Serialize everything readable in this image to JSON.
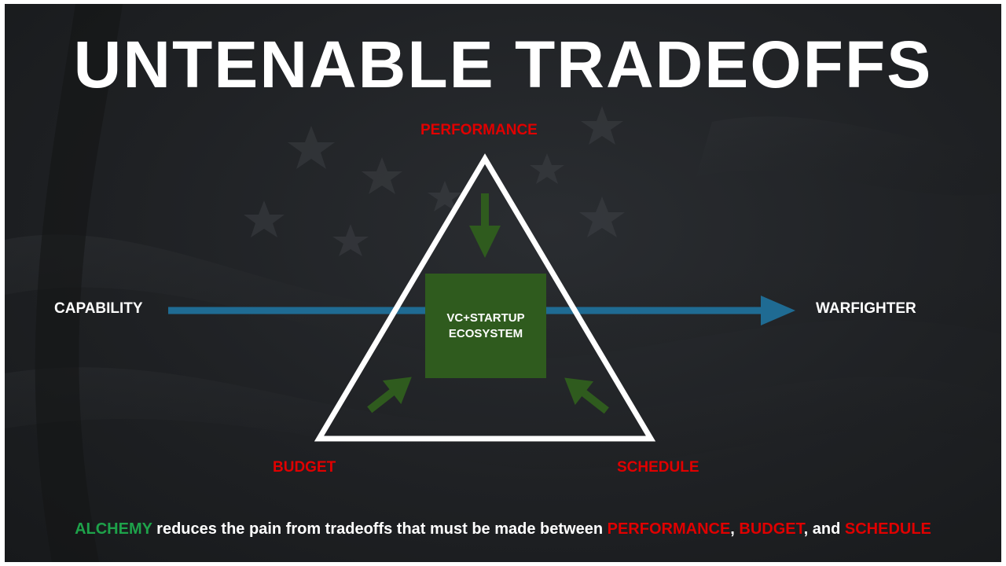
{
  "title": "UNTENABLE TRADEOFFS",
  "vertices": {
    "top": "PERFORMANCE",
    "bottom_left": "BUDGET",
    "bottom_right": "SCHEDULE"
  },
  "flow": {
    "source": "CAPABILITY",
    "target": "WARFIGHTER"
  },
  "center_box": {
    "line1": "VC+STARTUP",
    "line2": "ECOSYSTEM"
  },
  "footer": {
    "brand": "ALCHEMY",
    "text1": " reduces the pain from tradeoffs that must be made between ",
    "term1": "PERFORMANCE",
    "sep1": ", ",
    "term2": "BUDGET",
    "sep2": ", and ",
    "term3": "SCHEDULE"
  },
  "colors": {
    "red": "#e00000",
    "green_text": "#1ea24a",
    "box_green": "#2f5b1e",
    "arrow_blue": "#1f6b93",
    "background": "#1f2124"
  }
}
